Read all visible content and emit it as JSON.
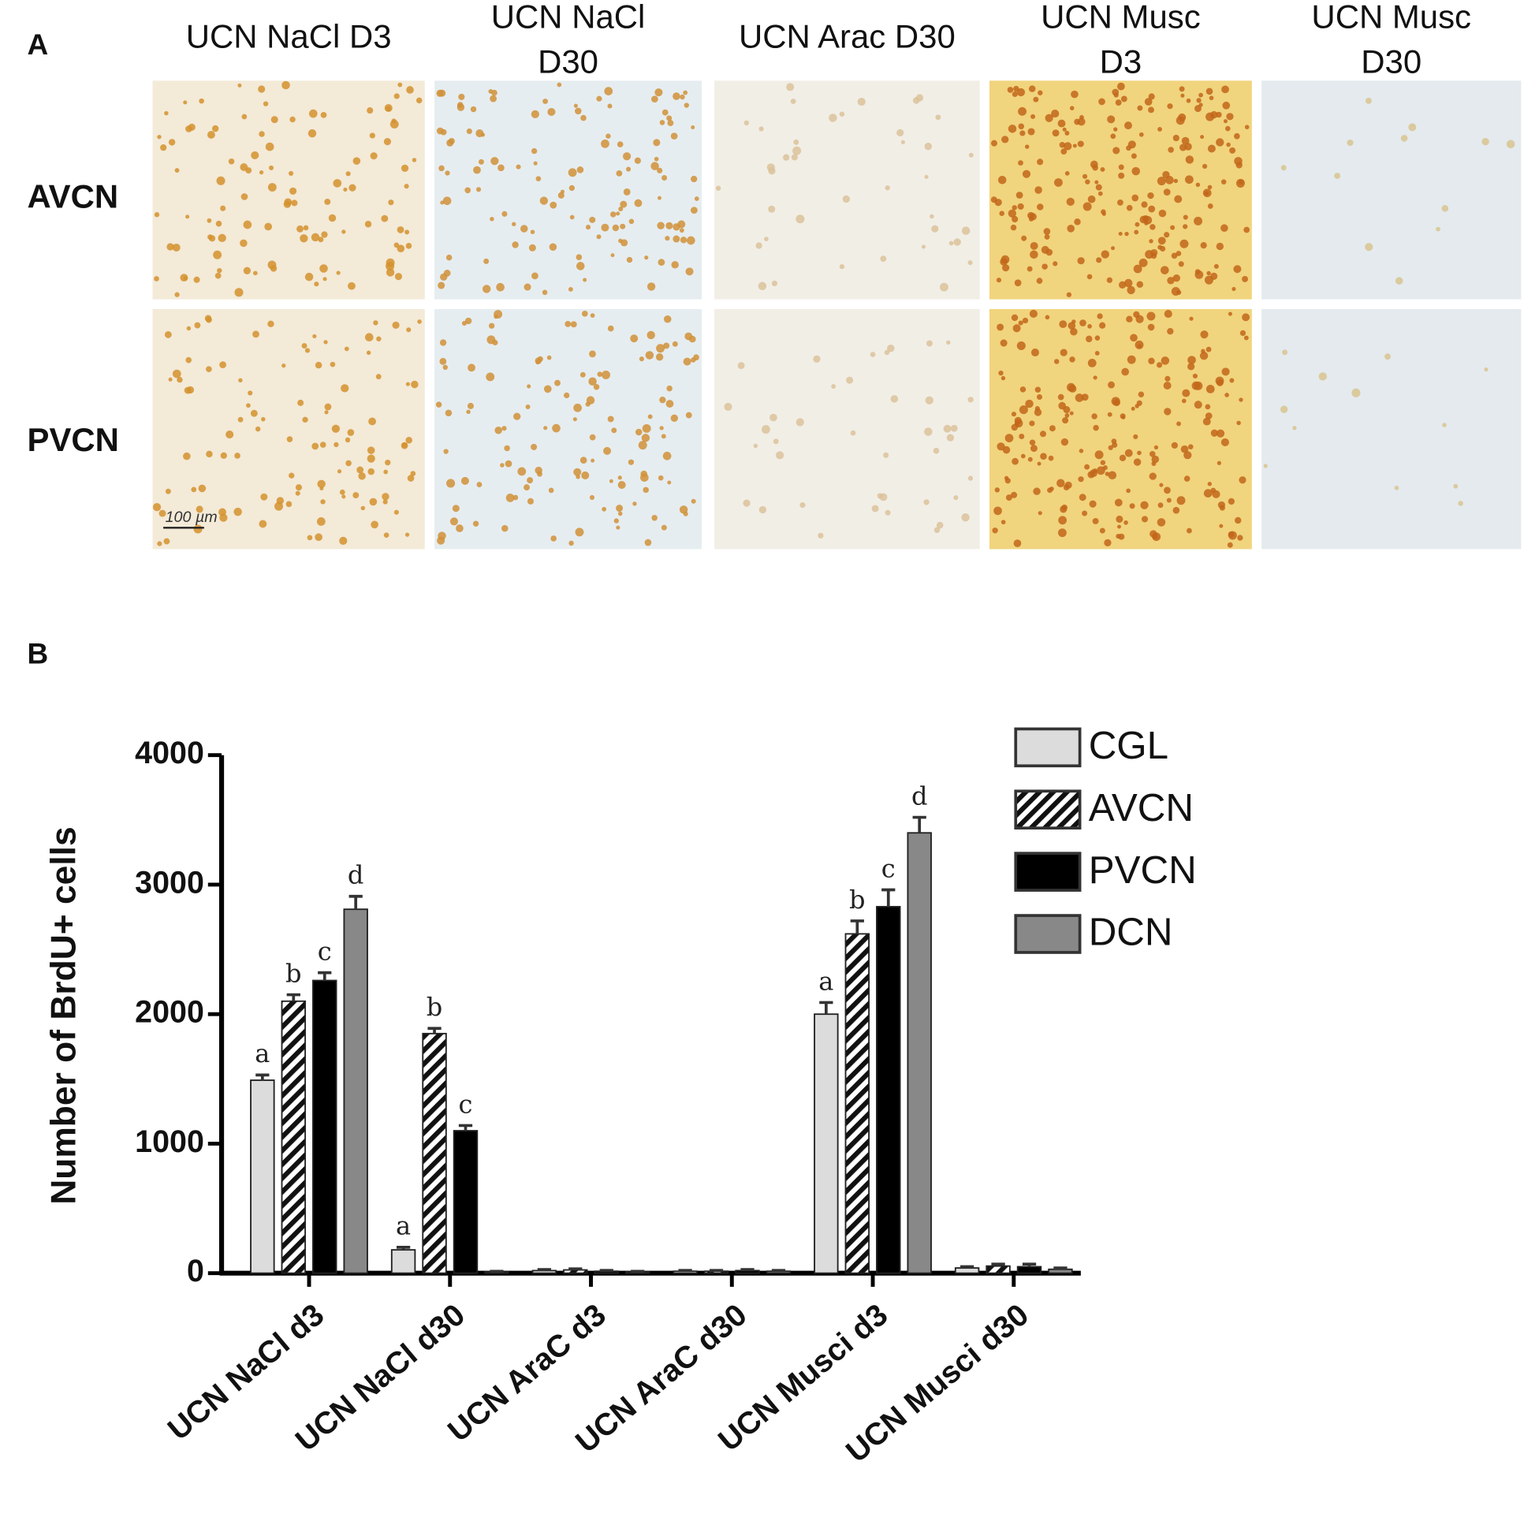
{
  "panel_a": {
    "label": "A",
    "column_titles": [
      [
        "UCN NaCl D3"
      ],
      [
        "UCN NaCl",
        "D30"
      ],
      [
        "UCN Arac D30"
      ],
      [
        "UCN Musc",
        "D3"
      ],
      [
        "UCN Musc",
        "D30"
      ]
    ],
    "row_labels": [
      "AVCN",
      "PVCN"
    ],
    "scale_bar": "100 µm"
  },
  "chart_data": {
    "type": "bar",
    "panel_label": "B",
    "y_label": "Number of BrdU+ cells",
    "categories": [
      "UCN NaCl d3",
      "UCN NaCl d30",
      "UCN AraC d3",
      "UCN AraC d30",
      "UCN Musci d3",
      "UCN Musci d30"
    ],
    "series": [
      {
        "name": "CGL",
        "color": "#dcdcdc",
        "values": [
          1490,
          180,
          20,
          15,
          2000,
          40
        ],
        "errors": [
          40,
          20,
          8,
          6,
          90,
          10
        ]
      },
      {
        "name": "AVCN",
        "color": "#111111",
        "hatch": true,
        "values": [
          2100,
          1850,
          25,
          15,
          2620,
          55
        ],
        "errors": [
          50,
          40,
          8,
          6,
          100,
          15
        ]
      },
      {
        "name": "PVCN",
        "color": "#000000",
        "values": [
          2260,
          1100,
          15,
          20,
          2830,
          50
        ],
        "errors": [
          60,
          40,
          6,
          8,
          130,
          20
        ]
      },
      {
        "name": "DCN",
        "color": "#888888",
        "values": [
          2810,
          10,
          10,
          15,
          3400,
          30
        ],
        "errors": [
          100,
          4,
          4,
          6,
          120,
          10
        ]
      }
    ],
    "annotations": [
      {
        "text": "a",
        "series": 0,
        "category": 0
      },
      {
        "text": "b",
        "series": 1,
        "category": 0
      },
      {
        "text": "c",
        "series": 2,
        "category": 0
      },
      {
        "text": "d",
        "series": 3,
        "category": 0
      },
      {
        "text": "a",
        "series": 0,
        "category": 1
      },
      {
        "text": "b",
        "series": 1,
        "category": 1
      },
      {
        "text": "c",
        "series": 2,
        "category": 1
      },
      {
        "text": "a",
        "series": 0,
        "category": 4
      },
      {
        "text": "b",
        "series": 1,
        "category": 4
      },
      {
        "text": "c",
        "series": 2,
        "category": 4
      },
      {
        "text": "d",
        "series": 3,
        "category": 4
      }
    ],
    "ylim": [
      0,
      4000
    ],
    "yticks": [
      0,
      1000,
      2000,
      3000,
      4000
    ],
    "legend": "top-right"
  }
}
